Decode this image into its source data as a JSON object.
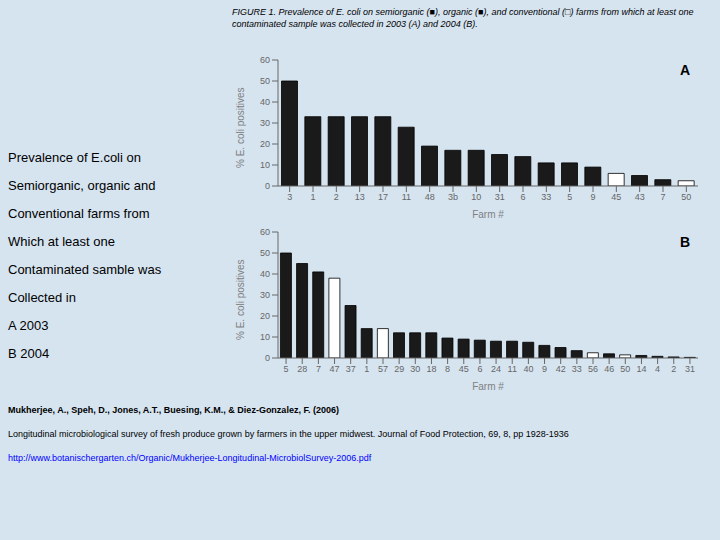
{
  "title": "FIGURE 1.  Prevalence of E. coli on semiorganic (■), organic (■), and conventional (□) farms from which at least one contaminated sample was collected in 2003 (A) and 2004 (B).",
  "annotations": [
    "Prevalence of E.coli on",
    "Semiorganic, organic and",
    "Conventional farms from",
    "Which at least one",
    "Contaminated samble was",
    "Collected in",
    "A 2003",
    "B 2004"
  ],
  "references": [
    "Mukherjee, A., Speh, D., Jones, A.T., Buesing, K.M., & Diez-Gonzalez, F. (2006)",
    "Longitudinal microbiological survey of fresh produce grown by farmers in the upper midwest. Journal of Food Protection, 69, 8, pp  1928-1936",
    "http://www.botanischergarten.ch/Organic/Mukherjee-Longitudinal-MicrobiolSurvey-2006.pdf"
  ],
  "chart_data": [
    {
      "type": "bar",
      "annotations": [
        "A"
      ],
      "xlabel": "Farm #",
      "ylabel": "% E. coli positives",
      "categories": [
        "3",
        "1",
        "2",
        "13",
        "17",
        "11",
        "48",
        "3b",
        "10",
        "31",
        "6",
        "33",
        "5",
        "9",
        "45",
        "43",
        "7",
        "50"
      ],
      "values": [
        50,
        33,
        33,
        33,
        33,
        28,
        19,
        17,
        17,
        15,
        14,
        11,
        11,
        9,
        6,
        5,
        3,
        2.5
      ],
      "colors": [
        "#1a1a1a",
        "#1a1a1a",
        "#1a1a1a",
        "#1a1a1a",
        "#1a1a1a",
        "#1a1a1a",
        "#1a1a1a",
        "#1a1a1a",
        "#1a1a1a",
        "#1a1a1a",
        "#1a1a1a",
        "#1a1a1a",
        "#1a1a1a",
        "#1a1a1a",
        "white",
        "#1a1a1a",
        "#1a1a1a",
        "white"
      ],
      "ylim": [
        0,
        60
      ],
      "yticks": [
        0,
        10,
        20,
        30,
        40,
        50,
        60
      ],
      "grid": false
    },
    {
      "type": "bar",
      "annotations": [
        "B"
      ],
      "xlabel": "Farm #",
      "ylabel": "% E. coli positives",
      "categories": [
        "5",
        "28",
        "7",
        "47",
        "37",
        "1",
        "57",
        "29",
        "30",
        "18",
        "8",
        "45",
        "6",
        "24",
        "11",
        "40",
        "9",
        "42",
        "33",
        "56",
        "46",
        "50",
        "14",
        "4",
        "2",
        "31"
      ],
      "values": [
        50,
        45,
        41,
        38,
        25,
        14,
        14,
        12,
        12,
        12,
        9.5,
        9,
        8.5,
        8,
        8,
        7.5,
        6,
        5,
        3.5,
        2.5,
        2,
        1.5,
        1.2,
        0.8,
        0.5,
        0.3
      ],
      "colors": [
        "#1a1a1a",
        "#1a1a1a",
        "#1a1a1a",
        "white",
        "#1a1a1a",
        "#1a1a1a",
        "white",
        "#1a1a1a",
        "#1a1a1a",
        "#1a1a1a",
        "#1a1a1a",
        "#1a1a1a",
        "#1a1a1a",
        "#1a1a1a",
        "#1a1a1a",
        "#1a1a1a",
        "#1a1a1a",
        "#1a1a1a",
        "#1a1a1a",
        "white",
        "#1a1a1a",
        "white",
        "#1a1a1a",
        "#1a1a1a",
        "#1a1a1a",
        "#1a1a1a"
      ],
      "ylim": [
        0,
        60
      ],
      "yticks": [
        0,
        10,
        20,
        30,
        40,
        50,
        60
      ],
      "grid": false
    }
  ]
}
